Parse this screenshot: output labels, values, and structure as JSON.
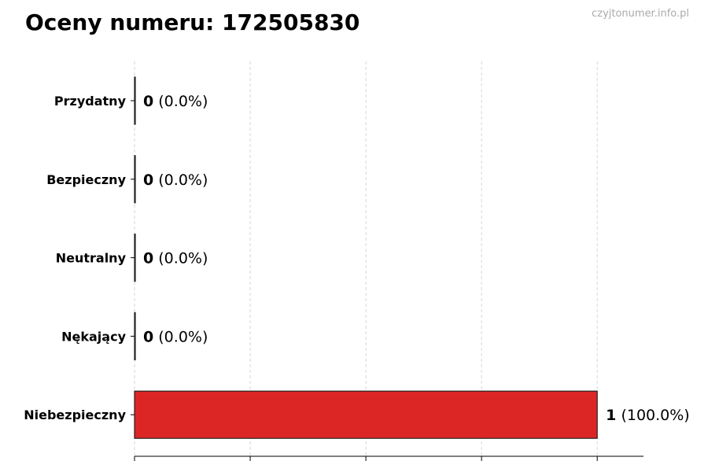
{
  "chart_data": {
    "type": "bar",
    "orientation": "horizontal",
    "title": "Oceny numeru: 172505830",
    "categories": [
      "Przydatny",
      "Bezpieczny",
      "Neutralny",
      "Nękający",
      "Niebezpieczny"
    ],
    "values": [
      0,
      0,
      0,
      0,
      1
    ],
    "value_labels": [
      "(0.0%)",
      "(0.0%)",
      "(0.0%)",
      "(0.0%)",
      "(100.0%)"
    ],
    "xlim": [
      0,
      1.1
    ],
    "xticks": [
      0,
      0.25,
      0.5,
      0.75,
      1
    ],
    "xtick_labels": [],
    "grid": "x, dashed",
    "xlabel": "",
    "ylabel": "",
    "bar_colors": [
      "#dc2626",
      "#dc2626",
      "#dc2626",
      "#dc2626",
      "#dc2626"
    ]
  },
  "watermark": "czyjtonumer.info.pl"
}
